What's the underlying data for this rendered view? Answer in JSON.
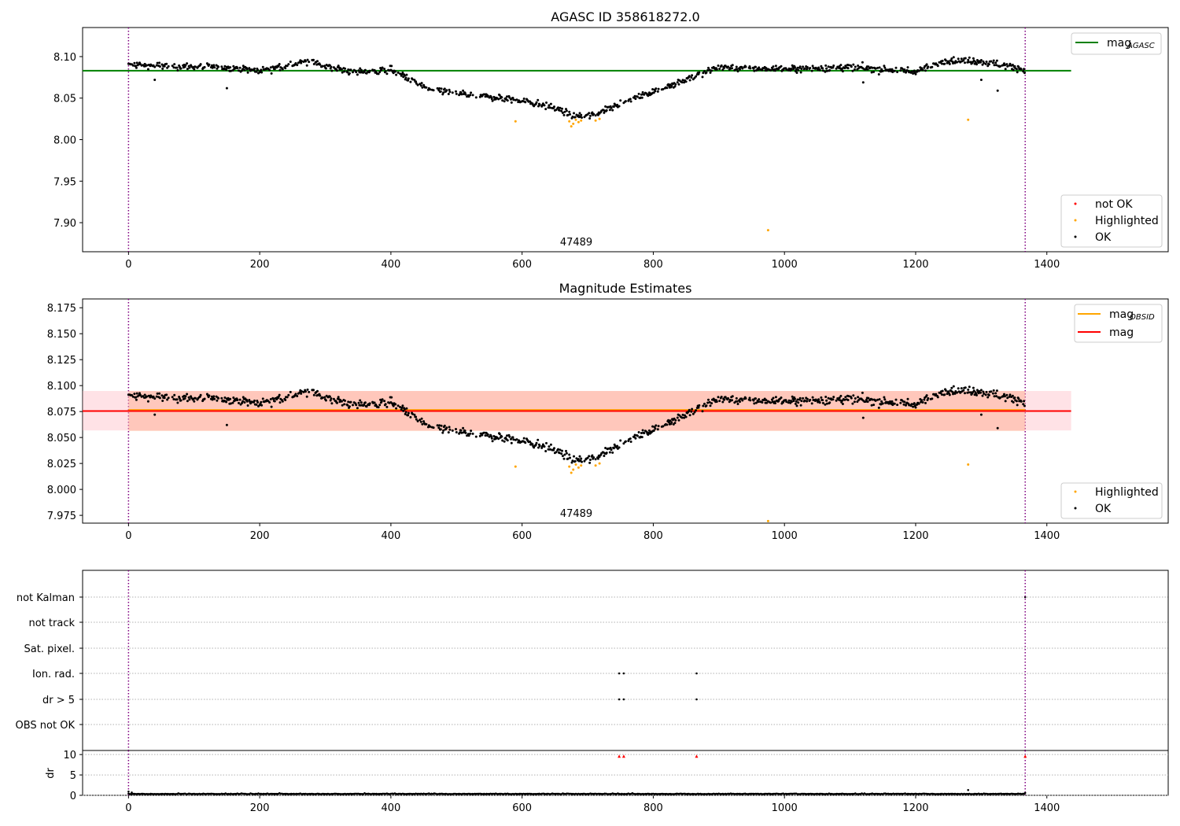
{
  "chart_data": [
    {
      "type": "scatter",
      "title": "AGASC ID 358618272.0",
      "xlim": [
        -70,
        1585
      ],
      "ylim": [
        7.865,
        8.135
      ],
      "xticks": [
        "0",
        "200",
        "400",
        "600",
        "800",
        "1000",
        "1200",
        "1400"
      ],
      "yticks": [
        "7.90",
        "7.95",
        "8.00",
        "8.05",
        "8.10"
      ],
      "ytick_values": [
        7.9,
        7.95,
        8.0,
        8.05,
        8.1
      ],
      "vlines": [
        0,
        1367
      ],
      "hlines": [
        {
          "name": "mag_AGASC",
          "value": 8.083,
          "color": "#008000",
          "x_range": [
            -70,
            1437
          ]
        }
      ],
      "annotation": {
        "text": "47489",
        "x": 683,
        "y": 7.874
      },
      "series": [
        {
          "name": "not OK",
          "color": "#ff0000",
          "points": []
        },
        {
          "name": "Highlighted",
          "color": "#ffa500",
          "points": [
            [
              590,
              8.022
            ],
            [
              672,
              8.022
            ],
            [
              675,
              8.016
            ],
            [
              678,
              8.019
            ],
            [
              682,
              8.024
            ],
            [
              686,
              8.021
            ],
            [
              690,
              8.023
            ],
            [
              712,
              8.023
            ],
            [
              718,
              8.025
            ],
            [
              975,
              7.891
            ],
            [
              1280,
              8.024
            ]
          ]
        },
        {
          "name": "OK",
          "color": "#000000",
          "points": []
        }
      ],
      "ok_trend": [
        [
          0,
          8.09
        ],
        [
          100,
          8.088
        ],
        [
          150,
          8.087
        ],
        [
          200,
          8.083
        ],
        [
          280,
          8.095
        ],
        [
          300,
          8.088
        ],
        [
          350,
          8.081
        ],
        [
          400,
          8.084
        ],
        [
          430,
          8.072
        ],
        [
          460,
          8.06
        ],
        [
          520,
          8.054
        ],
        [
          600,
          8.047
        ],
        [
          650,
          8.038
        ],
        [
          680,
          8.028
        ],
        [
          710,
          8.03
        ],
        [
          750,
          8.045
        ],
        [
          800,
          8.057
        ],
        [
          850,
          8.073
        ],
        [
          900,
          8.087
        ],
        [
          1000,
          8.085
        ],
        [
          1100,
          8.087
        ],
        [
          1200,
          8.082
        ],
        [
          1250,
          8.096
        ],
        [
          1300,
          8.094
        ],
        [
          1367,
          8.085
        ]
      ],
      "ok_outliers": [
        [
          40,
          8.072
        ],
        [
          150,
          8.062
        ],
        [
          1120,
          8.069
        ],
        [
          1300,
          8.072
        ],
        [
          1325,
          8.059
        ]
      ],
      "legend_lines": [
        {
          "label": "mag",
          "sub": "AGASC",
          "color": "#008000"
        }
      ],
      "legend_points": [
        {
          "label": "not OK",
          "color": "#ff0000"
        },
        {
          "label": "Highlighted",
          "color": "#ffa500"
        },
        {
          "label": "OK",
          "color": "#000000"
        }
      ]
    },
    {
      "type": "scatter",
      "title": "Magnitude Estimates",
      "xlim": [
        -70,
        1585
      ],
      "ylim": [
        7.9675,
        8.1835
      ],
      "xticks": [
        "0",
        "200",
        "400",
        "600",
        "800",
        "1000",
        "1200",
        "1400"
      ],
      "yticks": [
        "7.975",
        "8.000",
        "8.025",
        "8.050",
        "8.075",
        "8.100",
        "8.125",
        "8.150",
        "8.175"
      ],
      "ytick_values": [
        7.975,
        8.0,
        8.025,
        8.05,
        8.075,
        8.1,
        8.125,
        8.15,
        8.175
      ],
      "vlines": [
        0,
        1367
      ],
      "bands": [
        {
          "name": "mag band",
          "color": "#ffb6c1",
          "x_range": [
            -70,
            1437
          ],
          "y_range": [
            8.0568,
            8.0948
          ]
        },
        {
          "name": "mag_OBSID band",
          "color": "#ffa07a",
          "x_range": [
            0,
            1367
          ],
          "y_range": [
            8.0563,
            8.0948
          ]
        }
      ],
      "hlines": [
        {
          "name": "mag_OBSID",
          "value": 8.0765,
          "color": "#ffa500",
          "x_range": [
            0,
            1367
          ]
        },
        {
          "name": "mag",
          "value": 8.0755,
          "color": "#ff0000",
          "x_range": [
            -70,
            1437
          ]
        }
      ],
      "annotation": {
        "text": "47489",
        "x": 683,
        "y": 7.979
      },
      "series": [
        {
          "name": "Highlighted",
          "color": "#ffa500",
          "points": [
            [
              590,
              8.022
            ],
            [
              672,
              8.022
            ],
            [
              675,
              8.016
            ],
            [
              678,
              8.019
            ],
            [
              682,
              8.024
            ],
            [
              686,
              8.021
            ],
            [
              690,
              8.023
            ],
            [
              712,
              8.023
            ],
            [
              718,
              8.025
            ],
            [
              975,
              7.9695
            ],
            [
              1280,
              8.024
            ]
          ]
        },
        {
          "name": "OK",
          "color": "#000000",
          "points": []
        }
      ],
      "legend_lines": [
        {
          "label": "mag",
          "sub": "OBSID",
          "color": "#ffa500"
        },
        {
          "label": "mag",
          "sub": "",
          "color": "#ff0000"
        }
      ],
      "legend_points": [
        {
          "label": "Highlighted",
          "color": "#ffa500"
        },
        {
          "label": "OK",
          "color": "#000000"
        }
      ]
    },
    {
      "type": "scatter",
      "title": "",
      "xlim": [
        -70,
        1585
      ],
      "categories": [
        "not Kalman",
        "not track",
        "Sat. pixel.",
        "Ion. rad.",
        "dr > 5",
        "OBS not OK"
      ],
      "vlines": [
        0,
        1367
      ],
      "flag_points": {
        "Ion. rad.": [
          748,
          755,
          866
        ],
        "dr > 5": [
          748,
          755,
          866
        ],
        "not Kalman": [
          1367
        ]
      }
    },
    {
      "type": "scatter",
      "title": "",
      "ylabel": "dr",
      "xlim": [
        -70,
        1585
      ],
      "ylim": [
        0,
        11
      ],
      "xticks": [
        "0",
        "200",
        "400",
        "600",
        "800",
        "1000",
        "1200",
        "1400"
      ],
      "yticks": [
        "0",
        "5",
        "10"
      ],
      "ytick_values": [
        0,
        5,
        10
      ],
      "vlines": [
        0,
        1367
      ],
      "red_markers": [
        748,
        755,
        866,
        1367
      ],
      "dr_points": [
        [
          0,
          0.9
        ],
        [
          5,
          0.7
        ],
        [
          1280,
          1.3
        ],
        [
          1367,
          0.6
        ]
      ]
    }
  ]
}
